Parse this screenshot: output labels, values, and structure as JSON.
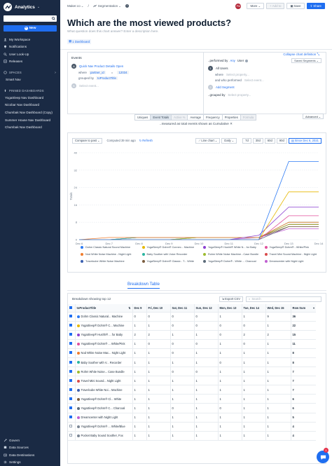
{
  "sidebar": {
    "app_title": "Analytics",
    "new_label": "New",
    "items": [
      "My Workspace",
      "Notifications",
      "User Look-Up",
      "Releases"
    ],
    "spaces_label": "SPACES",
    "smart_nav": "Smart Nav",
    "pinned_label": "PINNED DASHBOARDS",
    "pinned": [
      "YogaSleep Nav Dashboard",
      "Nicobar Nav Dashboard",
      "Chumbak Nav Dashboard (Copy)",
      "Summer House Nav Dashboard",
      "Chumbak Nav Dashboard"
    ],
    "bottom": [
      "Govern",
      "Data Sources",
      "Data Destinations",
      "Settings"
    ]
  },
  "topbar": {
    "crumb1": "Maker.co",
    "crumb2": "Segmentation",
    "avatar": "PM",
    "more": "More",
    "add_to": "Add to",
    "save": "Save",
    "share": "Share"
  },
  "header": {
    "title": "Which are the most viewed products?",
    "description": "What question does this chart answer? Enter a description here.",
    "dashboard": "1 Dashboard",
    "collapse": "Collapse chart definition"
  },
  "query": {
    "events_label": "Events",
    "event_a": "Quick Nav Product Details Open",
    "where": "where",
    "prop": "partner_id",
    "eq": "=",
    "value": "12034",
    "grouped_by": "grouped by",
    "group_prop": "toProductTitle",
    "select_event": "Select event...",
    "performed_by": "..performed by",
    "any": "Any",
    "user": "User",
    "saved_segments": "Saved Segments",
    "all_users": "All Users",
    "select_property": "Select property...",
    "who_performed": "and who performed",
    "select_event2": "Select event...",
    "add_segment": "Add Segment",
    "grouped_by2": "..grouped by",
    "select_property2": "Select property..."
  },
  "metric_tabs": [
    "Uniques",
    "Event Totals",
    "Active %",
    "Average",
    "Frequency",
    "Properties",
    "Formula"
  ],
  "advanced": "Advanced",
  "measured": "..measured as total events shown as Cumulative",
  "chart_controls": {
    "compare": "Compare to past",
    "computed": "Computed 39 min ago",
    "refresh": "Refresh",
    "chart_type": "Line chart",
    "interval": "Daily",
    "ranges": [
      "7d",
      "30d",
      "60d",
      "90d"
    ],
    "since": "Since Dec 6, 2021"
  },
  "chart_data": {
    "type": "line",
    "x": [
      "Dec 6",
      "Dec 7",
      "Dec 8",
      "Dec 9",
      "Dec 10",
      "Dec 11",
      "Dec 12",
      "Dec 13",
      "Dec 14"
    ],
    "ylabel": "Totals",
    "ylim": [
      0,
      40
    ],
    "yticks": [
      0,
      8,
      16,
      24,
      32,
      40
    ],
    "series": [
      {
        "name": "Dohm Classic Natural Sound Machine",
        "color": "#2d7bf4",
        "values": [
          0,
          0,
          0,
          0,
          0,
          0,
          0,
          36,
          36
        ]
      },
      {
        "name": "YogaSleep® Dohm® Connec... Machine",
        "color": "#e6b800",
        "values": [
          0,
          0,
          0,
          0,
          0,
          0,
          0,
          22,
          22
        ]
      },
      {
        "name": "YogaSleep® Hushh® White N... for Baby",
        "color": "#8a3fd1",
        "values": [
          0,
          0,
          0,
          0,
          0,
          0,
          2,
          15,
          15
        ]
      },
      {
        "name": "YogaSleep® Dohm® - White/Pink",
        "color": "#e04f9c",
        "values": [
          0,
          0,
          0,
          0,
          0,
          0,
          0,
          11,
          11
        ]
      },
      {
        "name": "Nod White Noise Machine - Night Light",
        "color": "#f07d2e",
        "values": [
          0,
          1,
          1,
          1,
          1,
          1,
          1,
          8,
          8
        ]
      },
      {
        "name": "Baby Soother with Voice Recorder",
        "color": "#2ab5a0",
        "values": [
          0,
          0,
          1,
          1,
          1,
          1,
          1,
          8,
          8
        ]
      },
      {
        "name": "Rohm White Noise Machine - Case Bundle",
        "color": "#9dbb2f",
        "values": [
          0,
          0,
          0,
          0,
          1,
          1,
          1,
          7,
          7
        ]
      },
      {
        "name": "Travel Mini Sound Machine - Night Light",
        "color": "#d94a4a",
        "values": [
          0,
          0,
          1,
          1,
          1,
          1,
          1,
          7,
          7
        ]
      },
      {
        "name": "Travelcube White Noise Machine",
        "color": "#3a5fb0",
        "values": [
          0,
          0,
          1,
          1,
          1,
          1,
          1,
          7,
          7
        ]
      },
      {
        "name": "YogaSleep® Dohm® Classic - T... White",
        "color": "#7b5c3e",
        "values": [
          0,
          0,
          0,
          0,
          1,
          1,
          1,
          6,
          6
        ]
      },
      {
        "name": "YogaSleep® Dohm® - White ... Charcoal",
        "color": "#5c6b7a",
        "values": [
          0,
          0,
          0,
          0,
          0,
          0,
          0,
          6,
          6
        ]
      },
      {
        "name": "Dreamcenter with Night Light",
        "color": "#c05fd1",
        "values": [
          0,
          0,
          0,
          0,
          0,
          0,
          1,
          5,
          5
        ]
      }
    ]
  },
  "breakdown": {
    "tab": "Breakdown Table",
    "showing": "Breakdown showing top 12",
    "export": "Export CSV",
    "search": "Search",
    "col_title": "toProductTitle",
    "cols": [
      "Dec 9",
      "Fri, Dec 10",
      "Sat, Dec 11",
      "Sun, Dec 12",
      "Mon, Dec 13",
      "Tue, Dec 14",
      "Wed, Dec 15",
      "Row Sum"
    ],
    "rows": [
      {
        "name": "Dohm Classic Natural... Machine",
        "color": "#2d7bf4",
        "on": true,
        "vals": [
          "0",
          "0",
          "0",
          "0",
          "1",
          "1",
          "9",
          "36"
        ]
      },
      {
        "name": "YogaSleep® Dohm® C... Machine",
        "color": "#e6b800",
        "on": true,
        "vals": [
          "1",
          "1",
          "0",
          "0",
          "0",
          "0",
          "1",
          "22"
        ]
      },
      {
        "name": "YogaSleep® Hushh® ... for Baby",
        "color": "#8a3fd1",
        "on": true,
        "vals": [
          "2",
          "2",
          "1",
          "1",
          "0",
          "2",
          "2",
          "15"
        ]
      },
      {
        "name": "YogaSleep® Dohm® ... White/Pink",
        "color": "#e04f9c",
        "on": true,
        "vals": [
          "1",
          "0",
          "0",
          "0",
          "1",
          "0",
          "1",
          "11"
        ]
      },
      {
        "name": "Nod White Noise Mac... Night Light",
        "color": "#f07d2e",
        "on": true,
        "vals": [
          "1",
          "1",
          "0",
          "1",
          "1",
          "1",
          "1",
          "8"
        ]
      },
      {
        "name": "Baby Soother with V... Recorder",
        "color": "#2ab5a0",
        "on": true,
        "vals": [
          "1",
          "1",
          "1",
          "1",
          "0",
          "1",
          "1",
          "8"
        ]
      },
      {
        "name": "Rohm White Noise... Case Bundle",
        "color": "#9dbb2f",
        "on": true,
        "vals": [
          "1",
          "1",
          "0",
          "0",
          "1",
          "1",
          "1",
          "7"
        ]
      },
      {
        "name": "Travel Mini Sound... Night Light",
        "color": "#d94a4a",
        "on": true,
        "vals": [
          "1",
          "1",
          "1",
          "1",
          "1",
          "1",
          "1",
          "7"
        ]
      },
      {
        "name": "Travelcube White Noi... Machine",
        "color": "#3a5fb0",
        "on": true,
        "vals": [
          "1",
          "1",
          "1",
          "1",
          "1",
          "1",
          "1",
          "7"
        ]
      },
      {
        "name": "YogaSleep® Dohm® Cl... White",
        "color": "#7b5c3e",
        "on": true,
        "vals": [
          "1",
          "1",
          "1",
          "1",
          "1",
          "1",
          "1",
          "6"
        ]
      },
      {
        "name": "YogaSleep® Dohm® C... Charcoal",
        "color": "#5c6b7a",
        "on": true,
        "vals": [
          "1",
          "1",
          "0",
          "1",
          "0",
          "1",
          "1",
          "6"
        ]
      },
      {
        "name": "Dreamcenter with Night Light",
        "color": "#c05fd1",
        "on": true,
        "vals": [
          "1",
          "1",
          "1",
          "1",
          "1",
          "1",
          "1",
          "5"
        ]
      },
      {
        "name": "YogaSleep® Dohm® ... White/Blue",
        "color": "#7a8694",
        "on": false,
        "vals": [
          "1",
          "1",
          "1",
          "1",
          "1",
          "1",
          "1",
          "4"
        ]
      },
      {
        "name": "Pocket Baby Sound Soother, Fox",
        "color": "#7a8694",
        "on": false,
        "vals": [
          "1",
          "1",
          "1",
          "1",
          "1",
          "1",
          "1",
          "4"
        ]
      }
    ]
  },
  "help_badge": "1"
}
